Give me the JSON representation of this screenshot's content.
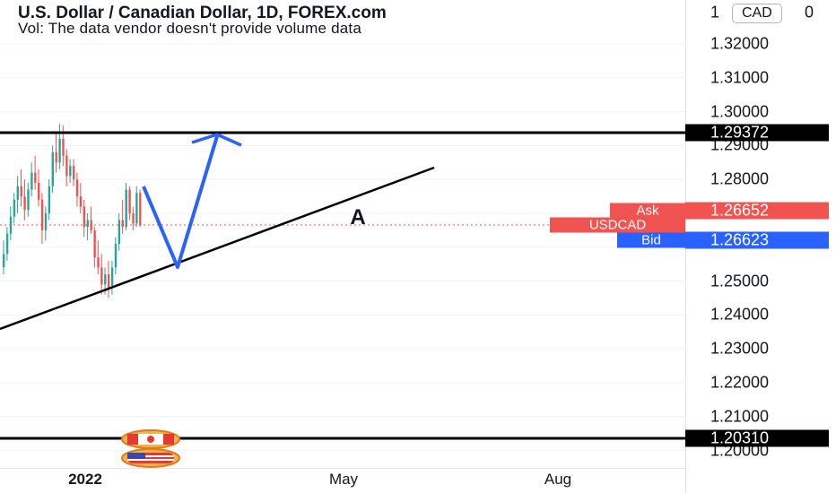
{
  "header": {
    "title": "U.S. Dollar / Canadian Dollar, 1D, FOREX.com",
    "volume_note": "Vol: The data vendor doesn't provide volume data"
  },
  "price_axis": {
    "currency": "CAD",
    "ticks": [
      "1.32000",
      "1.31000",
      "1.30000",
      "1.29000",
      "1.28000",
      "1.25000",
      "1.24000",
      "1.23000",
      "1.22000",
      "1.21000",
      "1.20000"
    ]
  },
  "time_axis": {
    "labels": [
      "2022",
      "May",
      "Aug"
    ]
  },
  "levels": {
    "resistance": {
      "value": "1.29372",
      "color": "#000000"
    },
    "support": {
      "value": "1.20310",
      "color": "#000000"
    }
  },
  "quote": {
    "symbol": "USDCAD",
    "ask_label": "Ask",
    "ask_value": "1.26652",
    "ask_color": "#f05350",
    "bid_label": "Bid",
    "bid_value": "1.26623",
    "bid_color": "#2962ff"
  },
  "annotation": {
    "label": "A"
  },
  "colors": {
    "up": "#26a69a",
    "down": "#ef5350",
    "drawing": "#2962ff",
    "trendline": "#000000"
  },
  "chart_data": {
    "type": "candlestick",
    "title": "U.S. Dollar / Canadian Dollar, 1D, FOREX.com",
    "ylim": [
      1.1975,
      1.3277
    ],
    "series": [
      {
        "name": "USDCAD",
        "ohlc": [
          [
            1.2541,
            1.262,
            1.252,
            1.258
          ],
          [
            1.258,
            1.266,
            1.256,
            1.264
          ],
          [
            1.264,
            1.272,
            1.262,
            1.269
          ],
          [
            1.269,
            1.276,
            1.267,
            1.274
          ],
          [
            1.274,
            1.281,
            1.27,
            1.278
          ],
          [
            1.278,
            1.283,
            1.272,
            1.275
          ],
          [
            1.275,
            1.28,
            1.268,
            1.271
          ],
          [
            1.271,
            1.279,
            1.269,
            1.277
          ],
          [
            1.277,
            1.285,
            1.275,
            1.282
          ],
          [
            1.282,
            1.287,
            1.277,
            1.279
          ],
          [
            1.279,
            1.283,
            1.272,
            1.274
          ],
          [
            1.274,
            1.276,
            1.261,
            1.265
          ],
          [
            1.265,
            1.272,
            1.262,
            1.27
          ],
          [
            1.27,
            1.28,
            1.268,
            1.278
          ],
          [
            1.278,
            1.29,
            1.276,
            1.288
          ],
          [
            1.288,
            1.294,
            1.282,
            1.285
          ],
          [
            1.285,
            1.2964,
            1.283,
            1.292
          ],
          [
            1.292,
            1.296,
            1.284,
            1.287
          ],
          [
            1.287,
            1.289,
            1.278,
            1.281
          ],
          [
            1.281,
            1.286,
            1.279,
            1.284
          ],
          [
            1.284,
            1.286,
            1.278,
            1.28
          ],
          [
            1.28,
            1.282,
            1.272,
            1.275
          ],
          [
            1.275,
            1.279,
            1.27,
            1.272
          ],
          [
            1.272,
            1.274,
            1.263,
            1.266
          ],
          [
            1.266,
            1.27,
            1.262,
            1.268
          ],
          [
            1.268,
            1.272,
            1.264,
            1.265
          ],
          [
            1.265,
            1.266,
            1.254,
            1.257
          ],
          [
            1.257,
            1.262,
            1.252,
            1.254
          ],
          [
            1.254,
            1.258,
            1.246,
            1.249
          ],
          [
            1.249,
            1.254,
            1.246,
            1.252
          ],
          [
            1.252,
            1.256,
            1.245,
            1.248
          ],
          [
            1.248,
            1.256,
            1.246,
            1.254
          ],
          [
            1.254,
            1.263,
            1.252,
            1.261
          ],
          [
            1.261,
            1.27,
            1.259,
            1.268
          ],
          [
            1.268,
            1.274,
            1.264,
            1.266
          ],
          [
            1.266,
            1.279,
            1.265,
            1.277
          ],
          [
            1.277,
            1.278,
            1.268,
            1.27
          ],
          [
            1.27,
            1.272,
            1.265,
            1.267
          ],
          [
            1.267,
            1.278,
            1.266,
            1.276
          ],
          [
            1.276,
            1.277,
            1.266,
            1.2665
          ]
        ]
      }
    ],
    "xlabels": [
      "2022",
      "May",
      "Aug"
    ],
    "horizontal_lines": [
      1.29372,
      1.2031
    ],
    "current_price": 1.26652
  }
}
